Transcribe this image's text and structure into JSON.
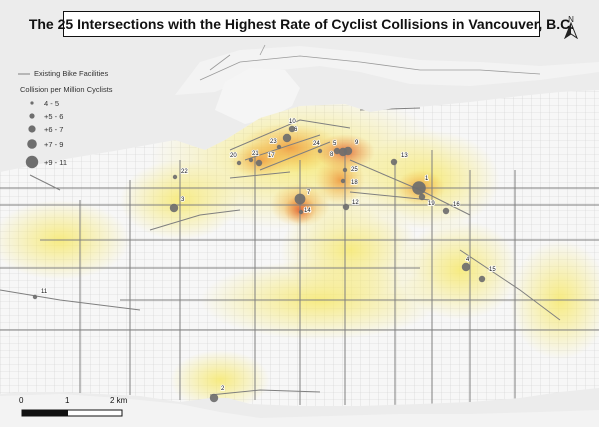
{
  "title": "The 25 Intersections with the Highest Rate of Cyclist Collisions in Vancouver, B.C.",
  "north_arrow": {
    "label": "N"
  },
  "legend": {
    "bike_facilities_label": "Existing Bike Facilities",
    "collision_title": "Collision per Million Cyclists",
    "classes": [
      "4 - 5",
      "+5 - 6",
      "+6 - 7",
      "+7 - 9",
      "+9 - 11"
    ]
  },
  "scale_bar": {
    "labels": [
      "0",
      "1",
      "2 km"
    ]
  },
  "colors": {
    "water": "#ececec",
    "land": "#f7f7f7",
    "streets": "#c9c9c9",
    "bike": "#7f7f7f",
    "points": "#6e6e6e",
    "heat_low": "#f6ee86",
    "heat_mid": "#f1c04f",
    "heat_high": "#e06a3a"
  },
  "intersections": [
    {
      "rank": "1",
      "class": 5
    },
    {
      "rank": "2",
      "class": 3
    },
    {
      "rank": "3",
      "class": 3
    },
    {
      "rank": "4",
      "class": 3
    },
    {
      "rank": "5",
      "class": 2
    },
    {
      "rank": "6",
      "class": 3
    },
    {
      "rank": "7",
      "class": 4
    },
    {
      "rank": "8",
      "class": 3
    },
    {
      "rank": "9",
      "class": 3
    },
    {
      "rank": "10",
      "class": 2
    },
    {
      "rank": "11",
      "class": 1
    },
    {
      "rank": "12",
      "class": 2
    },
    {
      "rank": "13",
      "class": 2
    },
    {
      "rank": "14",
      "class": 1
    },
    {
      "rank": "15",
      "class": 2
    },
    {
      "rank": "16",
      "class": 2
    },
    {
      "rank": "17",
      "class": 2
    },
    {
      "rank": "18",
      "class": 1
    },
    {
      "rank": "19",
      "class": 2
    },
    {
      "rank": "20",
      "class": 1
    },
    {
      "rank": "21",
      "class": 1
    },
    {
      "rank": "22",
      "class": 1
    },
    {
      "rank": "23",
      "class": 1
    },
    {
      "rank": "24",
      "class": 1
    },
    {
      "rank": "25",
      "class": 1
    }
  ]
}
